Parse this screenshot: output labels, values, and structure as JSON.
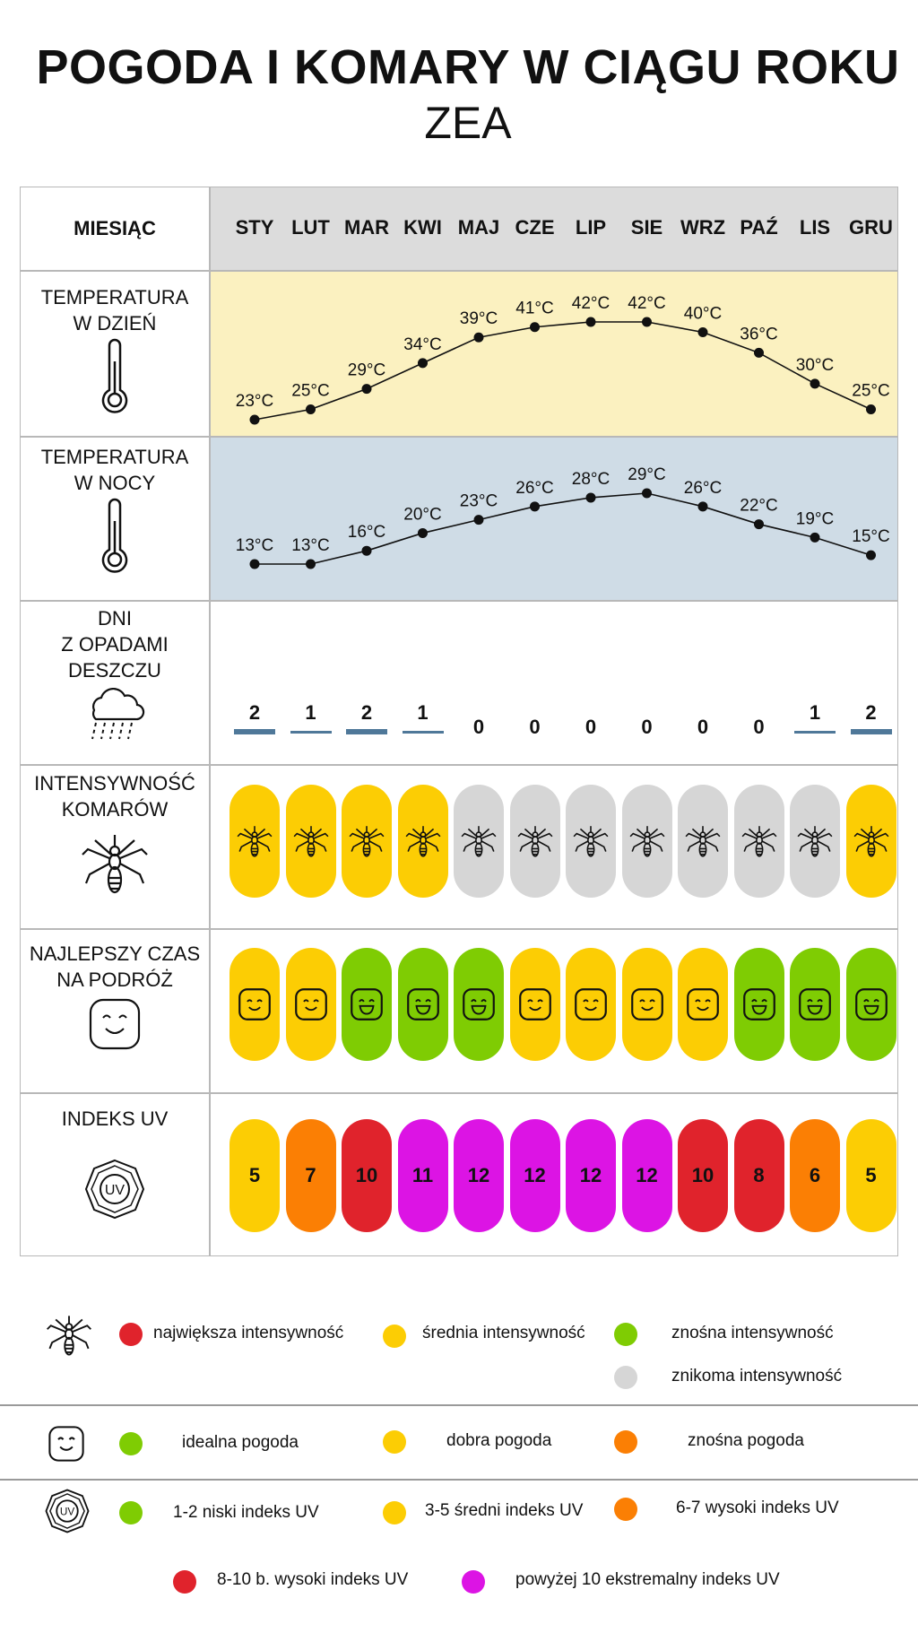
{
  "title": "POGODA I KOMARY W CIĄGU ROKU",
  "subtitle": "ZEA",
  "header_label": "MIESIĄC",
  "months": [
    "STY",
    "LUT",
    "MAR",
    "KWI",
    "MAJ",
    "CZE",
    "LIP",
    "SIE",
    "WRZ",
    "PAŹ",
    "LIS",
    "GRU"
  ],
  "colors": {
    "header_bg": "#dcdcdc",
    "day_bg": "#fbf1c0",
    "night_bg": "#cfdce6",
    "rain_bar": "#4f7899",
    "yellow": "#fccd04",
    "green": "#7fcc03",
    "grey": "#d6d6d6",
    "orange": "#fb7f04",
    "red": "#e0232c",
    "magenta": "#dc14e4"
  },
  "rows": {
    "day_label": [
      "TEMPERATURA",
      "W DZIEŃ"
    ],
    "night_label": [
      "TEMPERATURA",
      "W NOCY"
    ],
    "rain_label": [
      "DNI",
      "Z OPADAMI",
      "DESZCZU"
    ],
    "mosquito_label": [
      "INTENSYWNOŚĆ",
      "KOMARÓW"
    ],
    "travel_label": [
      "NAJLEPSZY CZAS",
      "NA PODRÓŻ"
    ],
    "uv_label": [
      "INDEKS UV"
    ]
  },
  "chart_data": [
    {
      "type": "line",
      "name": "day-temperature",
      "x": [
        "STY",
        "LUT",
        "MAR",
        "KWI",
        "MAJ",
        "CZE",
        "LIP",
        "SIE",
        "WRZ",
        "PAŹ",
        "LIS",
        "GRU"
      ],
      "values": [
        23,
        25,
        29,
        34,
        39,
        41,
        42,
        42,
        40,
        36,
        30,
        25
      ],
      "labels": [
        "23°C",
        "25°C",
        "29°C",
        "34°C",
        "39°C",
        "41°C",
        "42°C",
        "42°C",
        "40°C",
        "36°C",
        "30°C",
        "25°C"
      ]
    },
    {
      "type": "line",
      "name": "night-temperature",
      "x": [
        "STY",
        "LUT",
        "MAR",
        "KWI",
        "MAJ",
        "CZE",
        "LIP",
        "SIE",
        "WRZ",
        "PAŹ",
        "LIS",
        "GRU"
      ],
      "values": [
        13,
        13,
        16,
        20,
        23,
        26,
        28,
        29,
        26,
        22,
        19,
        15
      ],
      "labels": [
        "13°C",
        "13°C",
        "16°C",
        "20°C",
        "23°C",
        "26°C",
        "28°C",
        "29°C",
        "26°C",
        "22°C",
        "19°C",
        "15°C"
      ]
    },
    {
      "type": "bar",
      "name": "rain-days",
      "x": [
        "STY",
        "LUT",
        "MAR",
        "KWI",
        "MAJ",
        "CZE",
        "LIP",
        "SIE",
        "WRZ",
        "PAŹ",
        "LIS",
        "GRU"
      ],
      "values": [
        2,
        1,
        2,
        1,
        0,
        0,
        0,
        0,
        0,
        0,
        1,
        2
      ]
    },
    {
      "type": "table",
      "name": "mosquito-intensity",
      "x": [
        "STY",
        "LUT",
        "MAR",
        "KWI",
        "MAJ",
        "CZE",
        "LIP",
        "SIE",
        "WRZ",
        "PAŹ",
        "LIS",
        "GRU"
      ],
      "values": [
        "yellow",
        "yellow",
        "yellow",
        "yellow",
        "grey",
        "grey",
        "grey",
        "grey",
        "grey",
        "grey",
        "grey",
        "yellow"
      ]
    },
    {
      "type": "table",
      "name": "best-travel-time",
      "x": [
        "STY",
        "LUT",
        "MAR",
        "KWI",
        "MAJ",
        "CZE",
        "LIP",
        "SIE",
        "WRZ",
        "PAŹ",
        "LIS",
        "GRU"
      ],
      "values": [
        "yellow",
        "yellow",
        "green",
        "green",
        "green",
        "yellow",
        "yellow",
        "yellow",
        "yellow",
        "green",
        "green",
        "green"
      ]
    },
    {
      "type": "table",
      "name": "uv-index",
      "x": [
        "STY",
        "LUT",
        "MAR",
        "KWI",
        "MAJ",
        "CZE",
        "LIP",
        "SIE",
        "WRZ",
        "PAŹ",
        "LIS",
        "GRU"
      ],
      "values": [
        5,
        7,
        10,
        11,
        12,
        12,
        12,
        12,
        10,
        8,
        6,
        5
      ],
      "colors": [
        "yellow",
        "orange",
        "red",
        "magenta",
        "magenta",
        "magenta",
        "magenta",
        "magenta",
        "red",
        "red",
        "orange",
        "yellow"
      ]
    }
  ],
  "legend": {
    "mosquito": {
      "icon": "mosquito-icon",
      "items": [
        {
          "color": "red",
          "label": "największa intensywność"
        },
        {
          "color": "yellow",
          "label": "średnia intensywność"
        },
        {
          "color": "green",
          "label": "znośna intensywność"
        },
        {
          "color": "grey",
          "label": "znikoma intensywność"
        }
      ]
    },
    "weather": {
      "icon": "smiley-icon",
      "items": [
        {
          "color": "green",
          "label": "idealna pogoda"
        },
        {
          "color": "yellow",
          "label": "dobra pogoda"
        },
        {
          "color": "orange",
          "label": "znośna pogoda"
        }
      ]
    },
    "uv": {
      "icon": "uv-icon",
      "items": [
        {
          "color": "green",
          "label": "1-2 niski indeks UV"
        },
        {
          "color": "yellow",
          "label": "3-5 średni indeks UV"
        },
        {
          "color": "orange",
          "label": "6-7 wysoki indeks UV"
        },
        {
          "color": "red",
          "label": "8-10 b. wysoki indeks UV"
        },
        {
          "color": "magenta",
          "label": "powyżej 10 ekstremalny indeks UV"
        }
      ]
    }
  }
}
